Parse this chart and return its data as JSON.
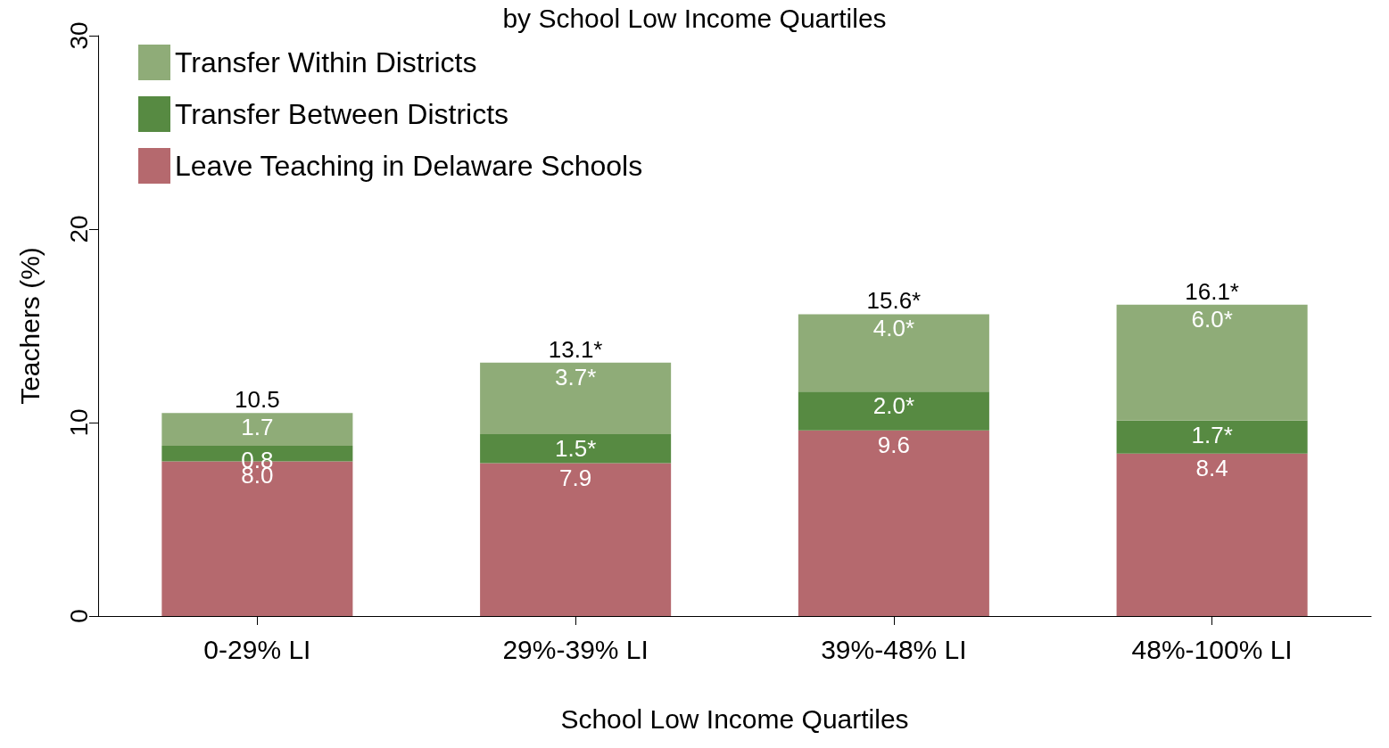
{
  "chart_data": {
    "type": "bar",
    "title": "by School Low Income Quartiles",
    "xlabel": "School Low Income Quartiles",
    "ylabel": "Teachers (%)",
    "categories": [
      "0-29% LI",
      "29%-39% LI",
      "39%-48% LI",
      "48%-100% LI"
    ],
    "stacked": true,
    "series": [
      {
        "name": "Leave Teaching in Delaware Schools",
        "color": "#b5696e",
        "values": [
          8.0,
          7.9,
          9.6,
          8.4
        ],
        "value_labels": [
          "8.0",
          "7.9",
          "9.6",
          "8.4"
        ]
      },
      {
        "name": "Transfer Between Districts",
        "color": "#578a42",
        "values": [
          0.8,
          1.5,
          2.0,
          1.7
        ],
        "value_labels": [
          "0.8",
          "1.5*",
          "2.0*",
          "1.7*"
        ]
      },
      {
        "name": "Transfer Within Districts",
        "color": "#8fac78",
        "values": [
          1.7,
          3.7,
          4.0,
          6.0
        ],
        "value_labels": [
          "1.7",
          "3.7*",
          "4.0*",
          "6.0*"
        ]
      }
    ],
    "totals": [
      "10.5",
      "13.1*",
      "15.6*",
      "16.1*"
    ],
    "ylim": [
      0,
      30
    ],
    "yticks": [
      0,
      10,
      20,
      30
    ],
    "grid": false,
    "legend": "top left"
  }
}
